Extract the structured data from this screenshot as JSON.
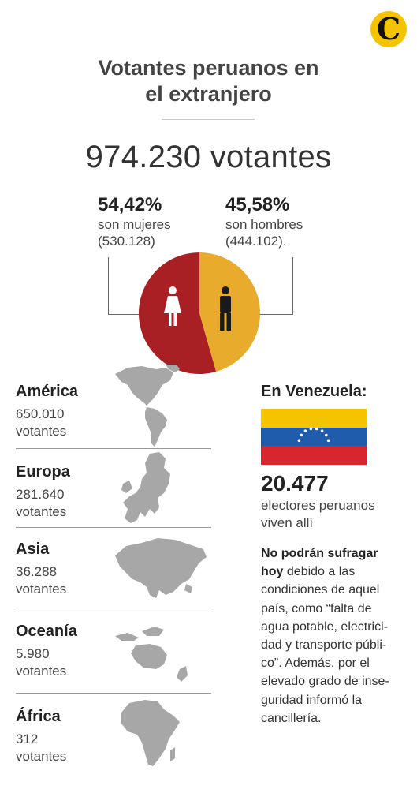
{
  "header": {
    "logo_letter": "C",
    "title_line1": "Votantes peruanos en",
    "title_line2": "el extranjero",
    "total": "974.230 votantes"
  },
  "gender": {
    "women": {
      "pct": "54,42%",
      "desc": "son mujeres",
      "count": "(530.128)"
    },
    "men": {
      "pct": "45,58%",
      "desc": "son hombres",
      "count": "(444.102)."
    }
  },
  "regions": [
    {
      "name": "América",
      "value": "650.010",
      "unit": "votantes"
    },
    {
      "name": "Europa",
      "value": "281.640",
      "unit": "votantes"
    },
    {
      "name": "Asia",
      "value": "36.288",
      "unit": "votantes"
    },
    {
      "name": "Oceanía",
      "value": "5.980",
      "unit": "votantes"
    },
    {
      "name": "África",
      "value": "312",
      "unit": "votantes"
    }
  ],
  "venezuela": {
    "title": "En Venezuela:",
    "count": "20.477",
    "desc_line1": "electores peruanos",
    "desc_line2": "viven allí",
    "para_bold1": "No podrán sufragar",
    "para_bold2": "hoy",
    "para_l1_rest": " debido a las",
    "para_l2": "condiciones de aquel",
    "para_l3": "país, como “falta de",
    "para_l4": "agua potable, electrici-",
    "para_l5": "dad y transporte públi-",
    "para_l6": "co”. Además, por el",
    "para_l7": "elevado grado de inse-",
    "para_l8": "guridad informó la",
    "para_l9": "cancillería.",
    "flag_colors": [
      "#f5c400",
      "#1f5cab",
      "#d7262e"
    ]
  },
  "chart_data": {
    "type": "pie",
    "categories": [
      "son mujeres",
      "son hombres"
    ],
    "values": [
      54.42,
      45.58
    ],
    "counts": [
      530128,
      444102
    ],
    "colors": [
      "#a81f24",
      "#e8ab2b"
    ],
    "region_counts": {
      "categories": [
        "América",
        "Europa",
        "Asia",
        "Oceanía",
        "África"
      ],
      "values": [
        650010,
        281640,
        36288,
        5980,
        312
      ]
    }
  },
  "icons": {
    "woman": "woman-icon",
    "man": "man-icon"
  }
}
